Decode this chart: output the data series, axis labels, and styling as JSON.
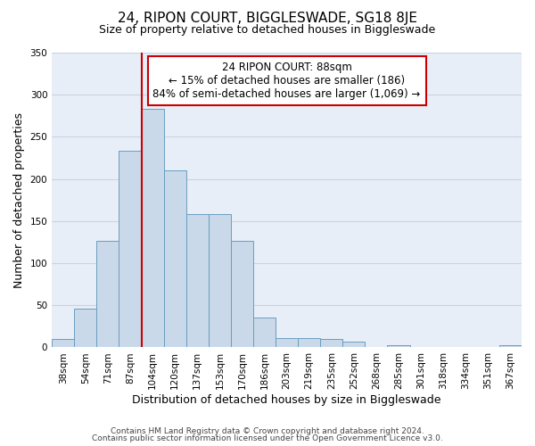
{
  "title1": "24, RIPON COURT, BIGGLESWADE, SG18 8JE",
  "title2": "Size of property relative to detached houses in Biggleswade",
  "xlabel": "Distribution of detached houses by size in Biggleswade",
  "ylabel": "Number of detached properties",
  "footer1": "Contains HM Land Registry data © Crown copyright and database right 2024.",
  "footer2": "Contains public sector information licensed under the Open Government Licence v3.0.",
  "bar_labels": [
    "38sqm",
    "54sqm",
    "71sqm",
    "87sqm",
    "104sqm",
    "120sqm",
    "137sqm",
    "153sqm",
    "170sqm",
    "186sqm",
    "203sqm",
    "219sqm",
    "235sqm",
    "252sqm",
    "268sqm",
    "285sqm",
    "301sqm",
    "318sqm",
    "334sqm",
    "351sqm",
    "367sqm"
  ],
  "bar_values": [
    10,
    46,
    126,
    233,
    283,
    210,
    158,
    158,
    127,
    35,
    11,
    11,
    10,
    7,
    0,
    3,
    0,
    0,
    0,
    0,
    3
  ],
  "bar_color": "#c9d9ea",
  "bar_edge_color": "#6a9dc0",
  "grid_color": "#c8d4e4",
  "bg_color": "#e8eef8",
  "annotation_text": "24 RIPON COURT: 88sqm\n← 15% of detached houses are smaller (186)\n84% of semi-detached houses are larger (1,069) →",
  "annotation_box_color": "#ffffff",
  "annotation_border_color": "#cc0000",
  "red_line_x": 3.5,
  "ylim": [
    0,
    350
  ],
  "yticks": [
    0,
    50,
    100,
    150,
    200,
    250,
    300,
    350
  ],
  "title1_fontsize": 11,
  "title2_fontsize": 9,
  "ylabel_fontsize": 9,
  "xlabel_fontsize": 9,
  "tick_fontsize": 7.5,
  "footer_fontsize": 6.5,
  "ann_fontsize": 8.5
}
